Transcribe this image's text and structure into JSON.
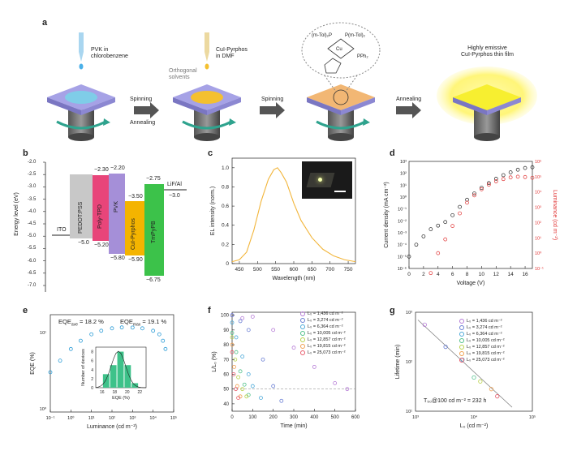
{
  "panels": {
    "a": {
      "letter": "a",
      "step1": "PVK in\nchlorobenzene",
      "step2": "CuI-Pyrphos\nin DMF",
      "orthogonal": "Orthogonal\nsolvents",
      "spinning1": "Spinning",
      "annealing1": "Annealing",
      "spinning2": "Spinning",
      "annealing2": "Annealing",
      "result": "Highly emissive\nCuI-Pyrphos thin film",
      "mol_top_left": "(m-Tol)₂P",
      "mol_top_right": "P(m-Tol)₂",
      "mol_right": "PPh₂",
      "mol_cu": "Cu"
    },
    "b": {
      "letter": "b",
      "ylabel": "Energy level (eV)",
      "yticks": [
        "-2.0",
        "-2.5",
        "-3.0",
        "-3.5",
        "-4.0",
        "-4.5",
        "-5.0",
        "-5.5",
        "-6.0",
        "-6.5",
        "-7.0"
      ],
      "layers": [
        {
          "name": "ITO",
          "color": "#ffffff"
        },
        {
          "name": "PEDOT:PSS",
          "top": "",
          "bottom": "−5.0",
          "color": "#c8c8c8"
        },
        {
          "name": "Poly-TPD",
          "top": "−2.30",
          "bottom": "−5.20",
          "color": "#e8457a"
        },
        {
          "name": "PVK",
          "top": "−2.20",
          "bottom": "−5.80",
          "color": "#a58fd8"
        },
        {
          "name": "CuI-Pyrphos",
          "top": "−3.50",
          "bottom": "−5.90",
          "color": "#f4b400"
        },
        {
          "name": "TmPyPB",
          "top": "−2.75",
          "bottom": "−6.75",
          "color": "#3cc24a"
        },
        {
          "name": "LiF/Al",
          "value": "−3.0"
        }
      ]
    },
    "c": {
      "letter": "c",
      "ylabel": "EL intensity (norm.)",
      "xlabel": "Wavelength (nm)",
      "xticks": [
        "450",
        "500",
        "550",
        "600",
        "650",
        "700",
        "750"
      ],
      "yticks": [
        "0",
        "0.2",
        "0.4",
        "0.6",
        "0.8",
        "1.0"
      ]
    },
    "d": {
      "letter": "d",
      "ylabel": "Current density (mA cm⁻²)",
      "y2label": "Luminance (cd m⁻²)",
      "xlabel": "Voltage (V)",
      "xticks": [
        "0",
        "2",
        "4",
        "6",
        "8",
        "10",
        "12",
        "14",
        "16"
      ],
      "yticks": [
        "10³",
        "10²",
        "10¹",
        "10⁰",
        "10⁻¹",
        "10⁻²",
        "10⁻³",
        "10⁻⁴",
        "10⁻⁵",
        "10⁻⁶"
      ],
      "y2ticks": [
        "10⁶",
        "10⁵",
        "10⁴",
        "10³",
        "10²",
        "10¹",
        "10⁰",
        "10⁻¹"
      ]
    },
    "e": {
      "letter": "e",
      "ylabel": "EQE (%)",
      "xlabel": "Luminance (cd m⁻²)",
      "eqe_ave": "EQE",
      "eqe_ave_sub": "ave",
      "eqe_ave_val": " = 18.2 %",
      "eqe_max": "EQE",
      "eqe_max_sub": "max",
      "eqe_max_val": " = 19.1 %",
      "xticks": [
        "10⁻¹",
        "10⁰",
        "10¹",
        "10²",
        "10³",
        "10⁴",
        "10⁵"
      ],
      "yticks": [
        "10¹",
        "10⁰"
      ],
      "inset_ylabel": "Number of devices",
      "inset_xlabel": "EQE (%)",
      "inset_xticks": [
        "16",
        "18",
        "20",
        "22"
      ],
      "inset_yticks": [
        "0",
        "2",
        "4",
        "6",
        "8"
      ]
    },
    "f": {
      "letter": "f",
      "ylabel": "L/L₀ (%)",
      "xlabel": "Time (min)",
      "xticks": [
        "0",
        "100",
        "200",
        "300",
        "400",
        "500",
        "600"
      ],
      "yticks": [
        "40",
        "50",
        "60",
        "70",
        "80",
        "90",
        "100"
      ]
    },
    "g": {
      "letter": "g",
      "ylabel": "Lifetime (min)",
      "xlabel": "L₀ (cd m⁻²)",
      "annotation": "T₅₀@100 cd m⁻² = 232 h",
      "xticks": [
        "10³",
        "10⁴",
        "10⁵"
      ],
      "yticks": [
        "10³",
        "10²",
        "10¹"
      ]
    }
  },
  "legend_fg": [
    {
      "label": "L₀ = 1,436 cd m⁻²",
      "color": "#b57ad6"
    },
    {
      "label": "L₀ = 3,274 cd m⁻²",
      "color": "#6a7fd4"
    },
    {
      "label": "L₀ = 6,364 cd m⁻²",
      "color": "#4aa8d8"
    },
    {
      "label": "L₀ = 10,005 cd m⁻²",
      "color": "#50c08a"
    },
    {
      "label": "L₀ = 12,857 cd m⁻²",
      "color": "#b8d24a"
    },
    {
      "label": "L₀ = 19,815 cd m⁻²",
      "color": "#f0a050"
    },
    {
      "label": "L₀ = 25,073 cd m⁻²",
      "color": "#e85a6a"
    }
  ],
  "chart_data": [
    {
      "type": "line",
      "title": "",
      "xlabel": "Wavelength (nm)",
      "ylabel": "EL intensity (norm.)",
      "xlim": [
        430,
        770
      ],
      "ylim": [
        0,
        1.1
      ],
      "series": [
        {
          "x": [
            430,
            450,
            470,
            490,
            510,
            530,
            545,
            555,
            565,
            580,
            600,
            620,
            650,
            680,
            710,
            740,
            770
          ],
          "values": [
            0.02,
            0.04,
            0.12,
            0.35,
            0.65,
            0.88,
            0.98,
            1.0,
            0.95,
            0.85,
            0.63,
            0.45,
            0.27,
            0.15,
            0.08,
            0.04,
            0.02
          ]
        }
      ]
    },
    {
      "type": "scatter",
      "xlabel": "Voltage (V)",
      "ylabel": "Current density (mA cm⁻²)",
      "y2label": "Luminance (cd m⁻²)",
      "xlim": [
        0,
        17
      ],
      "series": [
        {
          "x": [
            0,
            1,
            2,
            3,
            4,
            5,
            6,
            7,
            8,
            9,
            10,
            11,
            12,
            13,
            14,
            15,
            16,
            17
          ],
          "values": [
            1e-05,
            0.0001,
            0.0005,
            0.002,
            0.004,
            0.008,
            0.03,
            0.15,
            0.6,
            2,
            6,
            15,
            35,
            70,
            120,
            200,
            280,
            320
          ],
          "color": "#222222"
        },
        {
          "x": [
            3,
            4,
            5,
            6,
            7,
            8,
            9,
            10,
            11,
            12,
            13,
            14,
            15,
            16,
            17
          ],
          "values": [
            0.05,
            1,
            8,
            60,
            400,
            2000,
            6000,
            15000,
            30000,
            50000,
            70000,
            90000,
            100000,
            95000,
            85000
          ],
          "color": "#e03030"
        }
      ]
    },
    {
      "type": "scatter",
      "xlabel": "Luminance (cd m⁻²)",
      "ylabel": "EQE (%)",
      "series": [
        {
          "x": [
            0.1,
            0.3,
            1,
            3,
            10,
            30,
            100,
            300,
            1000,
            3000,
            10000,
            20000,
            30000,
            40000
          ],
          "values": [
            4,
            6,
            9,
            12,
            15,
            17,
            18.5,
            19.1,
            19,
            18.5,
            17,
            15,
            12,
            9
          ],
          "color": "#2a9bd6"
        }
      ],
      "inset": {
        "type": "bar",
        "categories": [
          "16",
          "17",
          "18",
          "19",
          "20"
        ],
        "values": [
          3,
          5,
          8,
          5,
          1
        ]
      }
    },
    {
      "type": "line",
      "xlabel": "Time (min)",
      "ylabel": "L/L₀ (%)",
      "xlim": [
        0,
        600
      ],
      "ylim": [
        35,
        102
      ],
      "series": [
        {
          "name": "L₀ = 1,436 cd m⁻²",
          "x": [
            0,
            50,
            100,
            200,
            300,
            400,
            500,
            560
          ],
          "values": [
            100,
            98,
            99,
            90,
            78,
            65,
            54,
            50
          ]
        },
        {
          "name": "L₀ = 3,274 cd m⁻²",
          "x": [
            0,
            40,
            80,
            150,
            200,
            240
          ],
          "values": [
            100,
            96,
            90,
            70,
            52,
            42
          ]
        },
        {
          "name": "L₀ = 6,364 cd m⁻²",
          "x": [
            0,
            20,
            50,
            80,
            100,
            140
          ],
          "values": [
            95,
            85,
            72,
            60,
            52,
            44
          ]
        },
        {
          "name": "L₀ = 10,005 cd m⁻²",
          "x": [
            0,
            20,
            40,
            60,
            80
          ],
          "values": [
            88,
            75,
            62,
            53,
            46
          ]
        },
        {
          "name": "L₀ = 12,857 cd m⁻²",
          "x": [
            0,
            15,
            30,
            50,
            70
          ],
          "values": [
            85,
            70,
            58,
            50,
            45
          ]
        },
        {
          "name": "L₀ = 19,815 cd m⁻²",
          "x": [
            0,
            10,
            25,
            40
          ],
          "values": [
            80,
            65,
            52,
            45
          ]
        },
        {
          "name": "L₀ = 25,073 cd m⁻²",
          "x": [
            0,
            8,
            18,
            30
          ],
          "values": [
            75,
            60,
            50,
            44
          ]
        }
      ],
      "reference_line": 50
    },
    {
      "type": "scatter",
      "xlabel": "L₀ (cd m⁻²)",
      "ylabel": "Lifetime (min)",
      "series": [
        {
          "x": [
            1436,
            3274,
            6364,
            10005,
            12857,
            19815,
            25073
          ],
          "values": [
            560,
            200,
            110,
            48,
            40,
            28,
            20
          ]
        }
      ],
      "annotation": "T₅₀@100 cd m⁻² = 232 h"
    }
  ]
}
